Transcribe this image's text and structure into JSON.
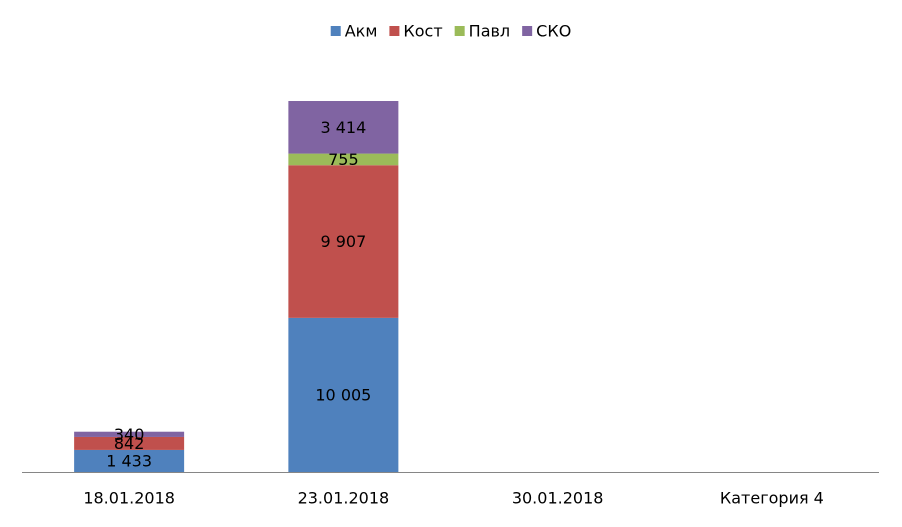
{
  "chart_data": {
    "type": "stacked_bar",
    "categories": [
      "18.01.2018",
      "23.01.2018",
      "30.01.2018",
      "Категория 4"
    ],
    "series": [
      {
        "name": "Акм",
        "color": "#4f81bd",
        "values": [
          1433,
          10005,
          null,
          null
        ],
        "value_labels": [
          "1 433",
          "10 005",
          null,
          null
        ]
      },
      {
        "name": "Кост",
        "color": "#c0504d",
        "values": [
          842,
          9907,
          null,
          null
        ],
        "value_labels": [
          "842",
          "9 907",
          null,
          null
        ]
      },
      {
        "name": "Павл",
        "color": "#9bbb59",
        "values": [
          null,
          755,
          null,
          null
        ],
        "value_labels": [
          null,
          "755",
          null,
          null
        ]
      },
      {
        "name": "СКО",
        "color": "#8064a2",
        "values": [
          340,
          3414,
          null,
          null
        ],
        "value_labels": [
          "340",
          "3 414",
          null,
          null
        ]
      }
    ],
    "legend": "top"
  }
}
